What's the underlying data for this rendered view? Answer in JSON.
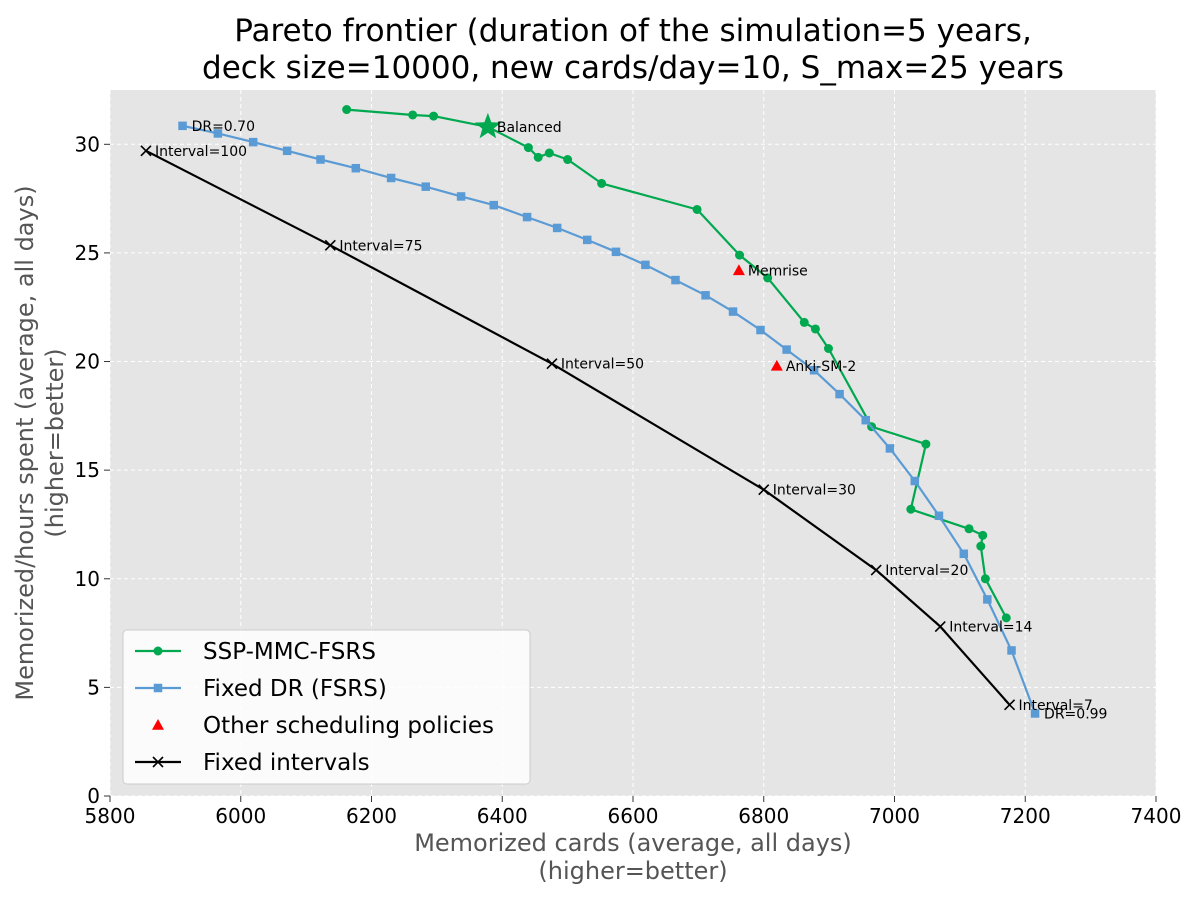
{
  "chart_data": {
    "type": "line",
    "title_lines": [
      "Pareto frontier (duration of the simulation=5 years,",
      "deck size=10000, new cards/day=10, S_max=25 years"
    ],
    "xlabel_lines": [
      "Memorized cards (average, all days)",
      "(higher=better)"
    ],
    "ylabel_lines": [
      "Memorized/hours spent (average, all days)",
      "(higher=better)"
    ],
    "xlim": [
      5800,
      7400
    ],
    "ylim": [
      0,
      32.5
    ],
    "xticks": [
      5800,
      6000,
      6200,
      6400,
      6600,
      6800,
      7000,
      7200,
      7400
    ],
    "yticks": [
      0,
      5,
      10,
      15,
      20,
      25,
      30
    ],
    "grid": true,
    "legend_position": "lower-left",
    "series": [
      {
        "name": "SSP-MMC-FSRS",
        "color": "#00a84f",
        "marker": "circle",
        "points": [
          [
            6162,
            31.6
          ],
          [
            6263,
            31.35
          ],
          [
            6295,
            31.3
          ],
          [
            6378,
            30.8
          ],
          [
            6440,
            29.85
          ],
          [
            6455,
            29.4
          ],
          [
            6472,
            29.6
          ],
          [
            6500,
            29.3
          ],
          [
            6552,
            28.2
          ],
          [
            6698,
            27.0
          ],
          [
            6763,
            24.9
          ],
          [
            6806,
            23.85
          ],
          [
            6862,
            21.8
          ],
          [
            6879,
            21.5
          ],
          [
            6899,
            20.6
          ],
          [
            6965,
            17.0
          ],
          [
            7048,
            16.2
          ],
          [
            7025,
            13.2
          ],
          [
            7114,
            12.3
          ],
          [
            7135,
            12.0
          ],
          [
            7132,
            11.5
          ],
          [
            7139,
            10.0
          ],
          [
            7171,
            8.2
          ]
        ]
      },
      {
        "name": "Fixed DR (FSRS)",
        "color": "#5b9bd5",
        "marker": "square",
        "points": [
          [
            5911,
            30.85
          ],
          [
            5965,
            30.5
          ],
          [
            6019,
            30.1
          ],
          [
            6071,
            29.7
          ],
          [
            6122,
            29.3
          ],
          [
            6176,
            28.9
          ],
          [
            6230,
            28.45
          ],
          [
            6283,
            28.05
          ],
          [
            6337,
            27.6
          ],
          [
            6387,
            27.2
          ],
          [
            6438,
            26.65
          ],
          [
            6484,
            26.15
          ],
          [
            6530,
            25.6
          ],
          [
            6574,
            25.05
          ],
          [
            6619,
            24.45
          ],
          [
            6665,
            23.75
          ],
          [
            6711,
            23.05
          ],
          [
            6753,
            22.3
          ],
          [
            6795,
            21.45
          ],
          [
            6835,
            20.55
          ],
          [
            6877,
            19.6
          ],
          [
            6916,
            18.5
          ],
          [
            6956,
            17.3
          ],
          [
            6993,
            16.0
          ],
          [
            7031,
            14.5
          ],
          [
            7068,
            12.9
          ],
          [
            7106,
            11.15
          ],
          [
            7142,
            9.05
          ],
          [
            7179,
            6.7
          ],
          [
            7215,
            3.8
          ]
        ]
      },
      {
        "name": "Other scheduling policies",
        "color": "#ff0000",
        "marker": "triangle",
        "points": [
          [
            6762,
            24.2
          ],
          [
            6820,
            19.8
          ]
        ]
      },
      {
        "name": "Fixed intervals",
        "color": "#000000",
        "marker": "x",
        "points": [
          [
            5855,
            29.7
          ],
          [
            6137,
            25.35
          ],
          [
            6476,
            19.9
          ],
          [
            6800,
            14.1
          ],
          [
            6972,
            10.4
          ],
          [
            7070,
            7.8
          ],
          [
            7176,
            4.2
          ]
        ]
      }
    ],
    "annotations": [
      {
        "text": "Balanced",
        "x": 6378,
        "y": 30.8
      },
      {
        "text": "DR=0.70",
        "x": 5911,
        "y": 30.85
      },
      {
        "text": "Interval=100",
        "x": 5855,
        "y": 29.7
      },
      {
        "text": "Interval=75",
        "x": 6137,
        "y": 25.35
      },
      {
        "text": "Memrise",
        "x": 6762,
        "y": 24.2
      },
      {
        "text": "Interval=50",
        "x": 6476,
        "y": 19.9
      },
      {
        "text": "Anki-SM-2",
        "x": 6820,
        "y": 19.8
      },
      {
        "text": "Interval=30",
        "x": 6800,
        "y": 14.1
      },
      {
        "text": "Interval=20",
        "x": 6972,
        "y": 10.4
      },
      {
        "text": "Interval=14",
        "x": 7070,
        "y": 7.8
      },
      {
        "text": "Interval=7",
        "x": 7176,
        "y": 4.2
      },
      {
        "text": "DR=0.99",
        "x": 7215,
        "y": 3.8
      }
    ],
    "highlight": {
      "label": "Balanced",
      "x": 6378,
      "y": 30.8,
      "marker": "star",
      "color": "#00a84f"
    }
  }
}
